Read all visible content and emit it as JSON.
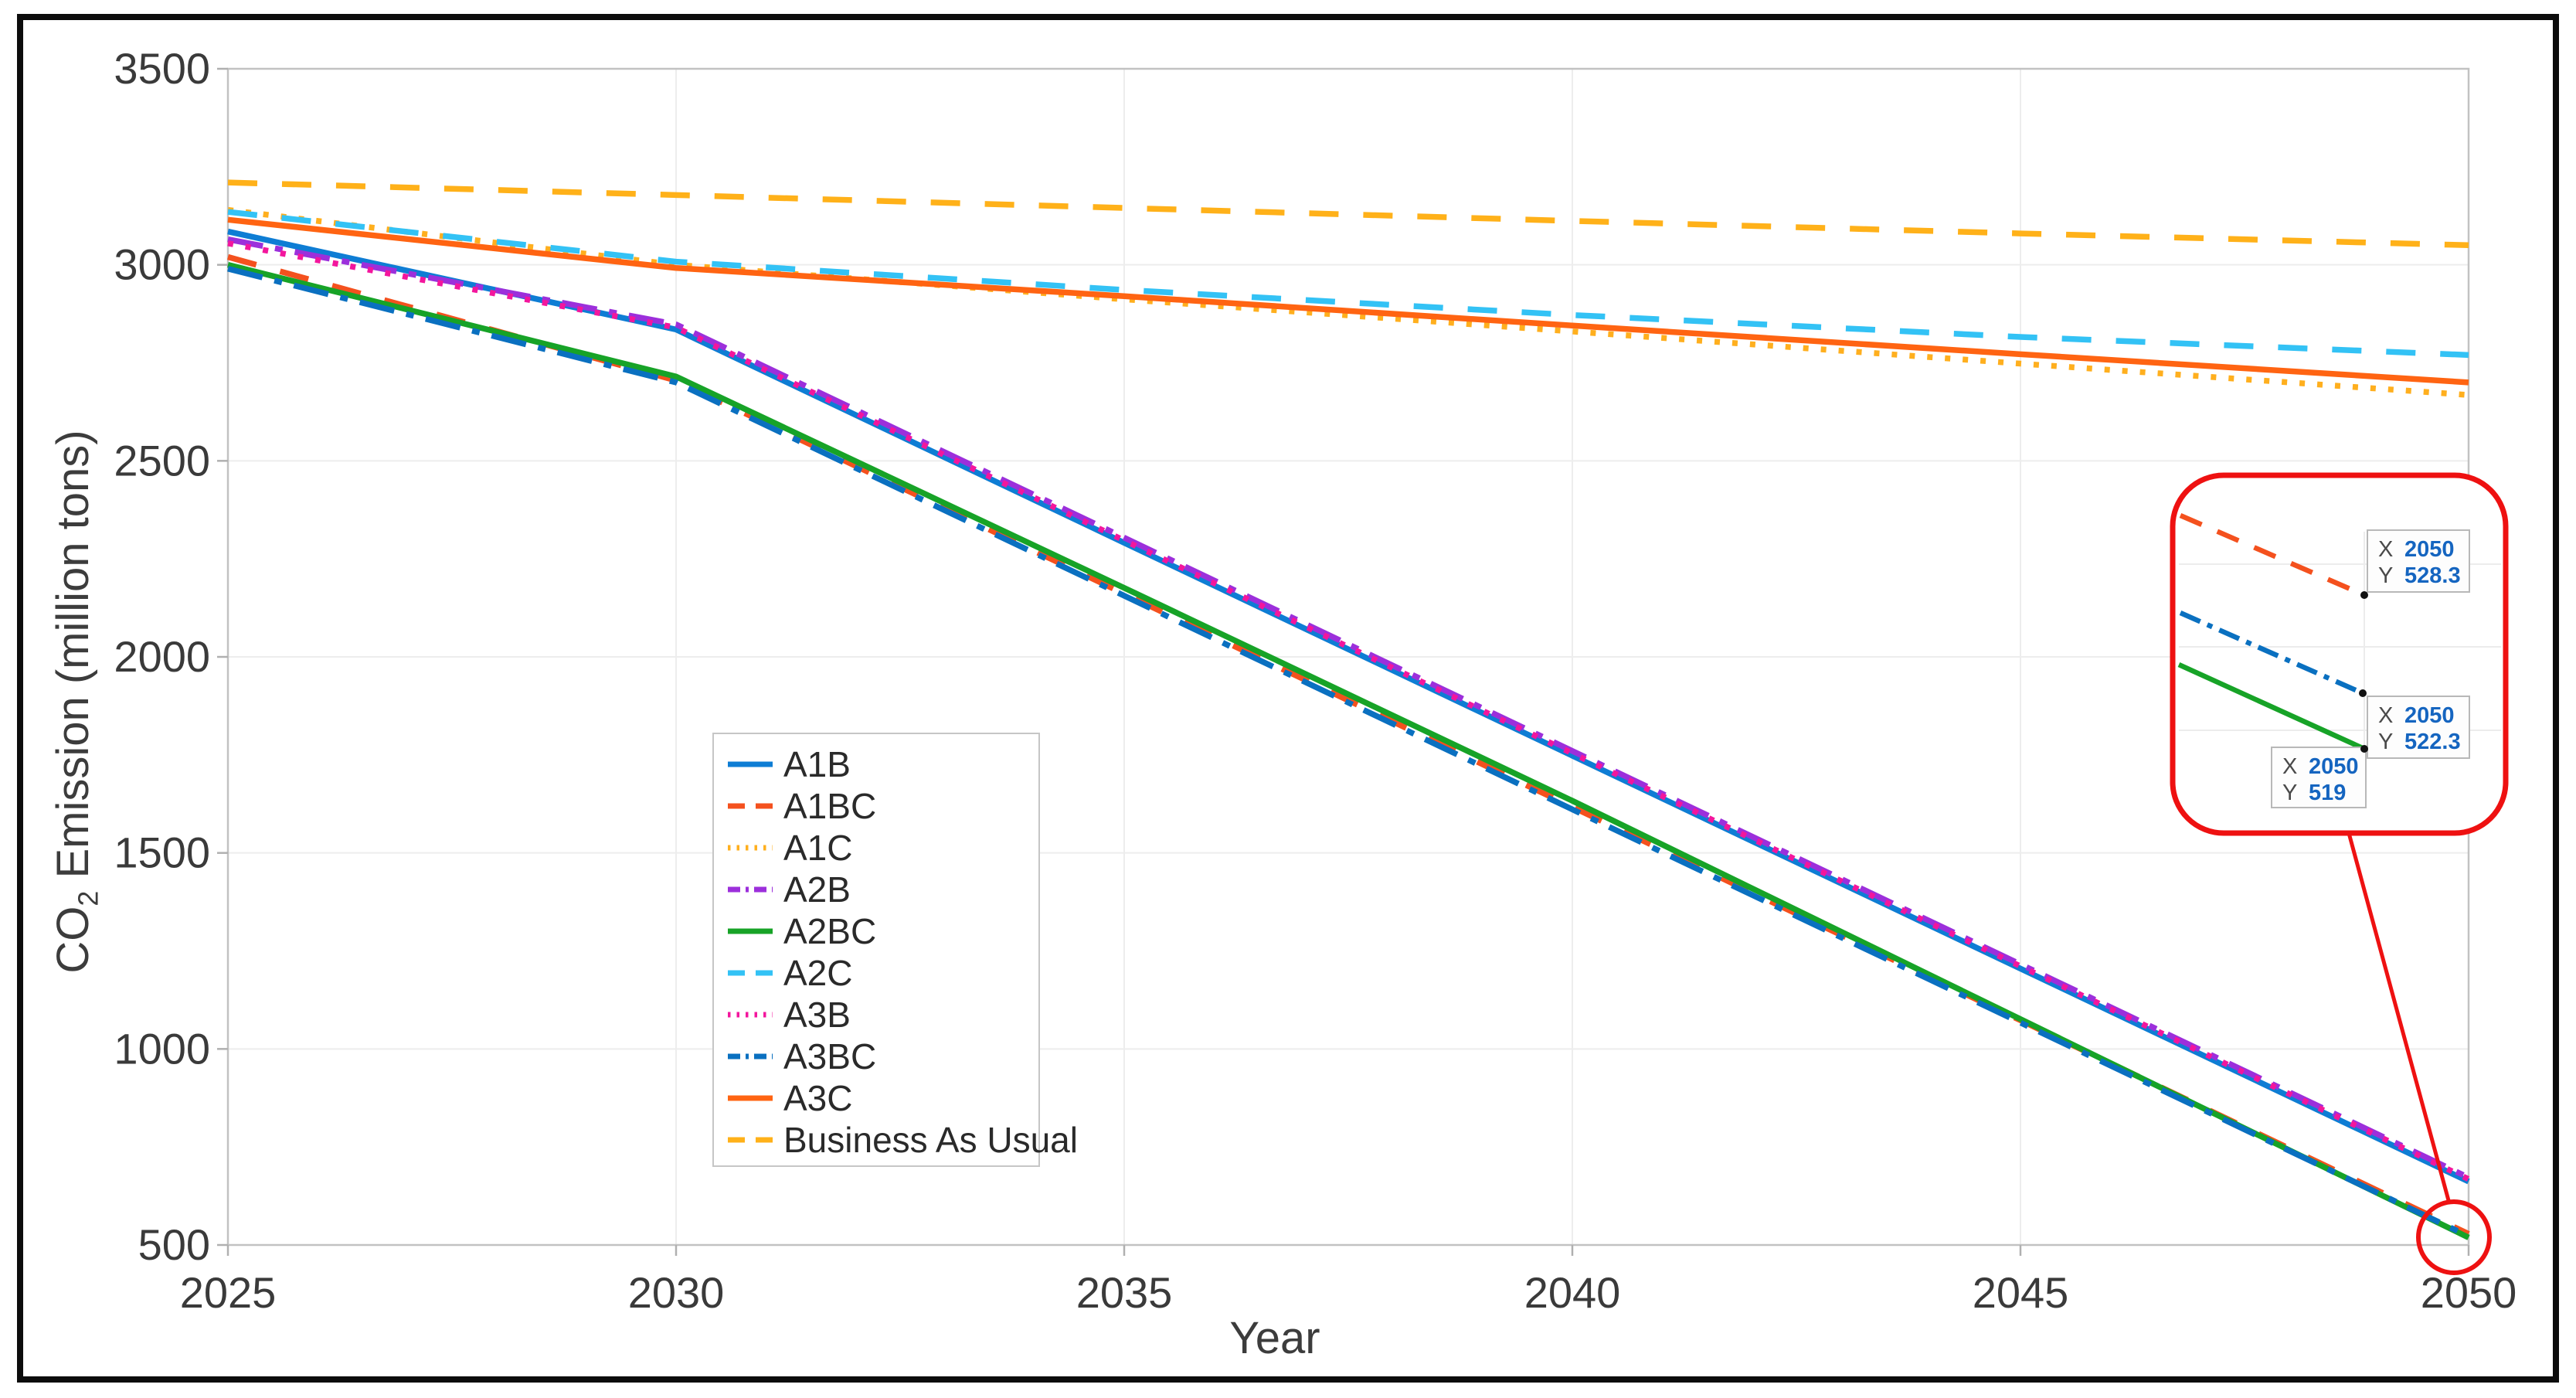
{
  "figure": {
    "frame_color": "#0c0c0c",
    "background": "#ffffff"
  },
  "chart_data": {
    "type": "line",
    "title": "",
    "xlabel": "Year",
    "ylabel_parts": {
      "pre": "CO",
      "sub": "2",
      "post": " Emission (million tons)"
    },
    "xlim": [
      2025,
      2050
    ],
    "ylim": [
      500,
      3500
    ],
    "x_ticks": [
      "2025",
      "2030",
      "2035",
      "2040",
      "2045",
      "2050"
    ],
    "y_ticks": [
      "500",
      "1000",
      "1500",
      "2000",
      "2500",
      "3000",
      "3500"
    ],
    "grid": true,
    "legend_position": "inside-left-center",
    "x": [
      2025,
      2030,
      2035,
      2040,
      2045,
      2050
    ],
    "series": [
      {
        "name": "A1B",
        "color": "#0e7dd4",
        "style": "solid",
        "values": [
          3085,
          2835,
          2291,
          1748,
          1205,
          662
        ]
      },
      {
        "name": "A1BC",
        "color": "#f4511e",
        "style": "dashed",
        "values": [
          3020,
          2705,
          2161,
          1617,
          1073,
          528.3
        ]
      },
      {
        "name": "A1C",
        "color": "#ffaf1e",
        "style": "dotted",
        "values": [
          3140,
          3000,
          2912,
          2830,
          2748,
          2668
        ]
      },
      {
        "name": "A2B",
        "color": "#9c2fdb",
        "style": "dashdot",
        "values": [
          3065,
          2848,
          2304,
          1760,
          1216,
          672
        ]
      },
      {
        "name": "A2BC",
        "color": "#17a327",
        "style": "solid",
        "values": [
          3000,
          2715,
          2176,
          1633,
          1076,
          519
        ]
      },
      {
        "name": "A2C",
        "color": "#33c2f5",
        "style": "dashed",
        "values": [
          3135,
          3008,
          2936,
          2872,
          2816,
          2770
        ]
      },
      {
        "name": "A3B",
        "color": "#f3169d",
        "style": "dotted",
        "values": [
          3055,
          2840,
          2297,
          1754,
          1211,
          668
        ]
      },
      {
        "name": "A3BC",
        "color": "#0a70c0",
        "style": "dashdot",
        "values": [
          2990,
          2700,
          2156,
          1611,
          1067,
          522.3
        ]
      },
      {
        "name": "A3C",
        "color": "#ff6412",
        "style": "solid",
        "values": [
          3115,
          2992,
          2920,
          2845,
          2772,
          2700
        ]
      },
      {
        "name": "Business As Usual",
        "color": "#ffb119",
        "style": "dashed",
        "values": [
          3210,
          3178,
          3145,
          3112,
          3080,
          3050
        ]
      }
    ],
    "annotation": {
      "color": "#ee1111",
      "magnified_series": [
        "A1BC",
        "A3BC",
        "A2BC"
      ],
      "datatips": [
        {
          "x_label": "X",
          "x": "2050",
          "y_label": "Y",
          "y": "528.3",
          "series": "A1BC"
        },
        {
          "x_label": "X",
          "x": "2050",
          "y_label": "Y",
          "y": "522.3",
          "series": "A3BC"
        },
        {
          "x_label": "X",
          "x": "2050",
          "y_label": "Y",
          "y": "519",
          "series": "A2BC"
        }
      ],
      "datatip_label_color": "#4a4a4a",
      "datatip_value_color": "#1565c0"
    }
  }
}
